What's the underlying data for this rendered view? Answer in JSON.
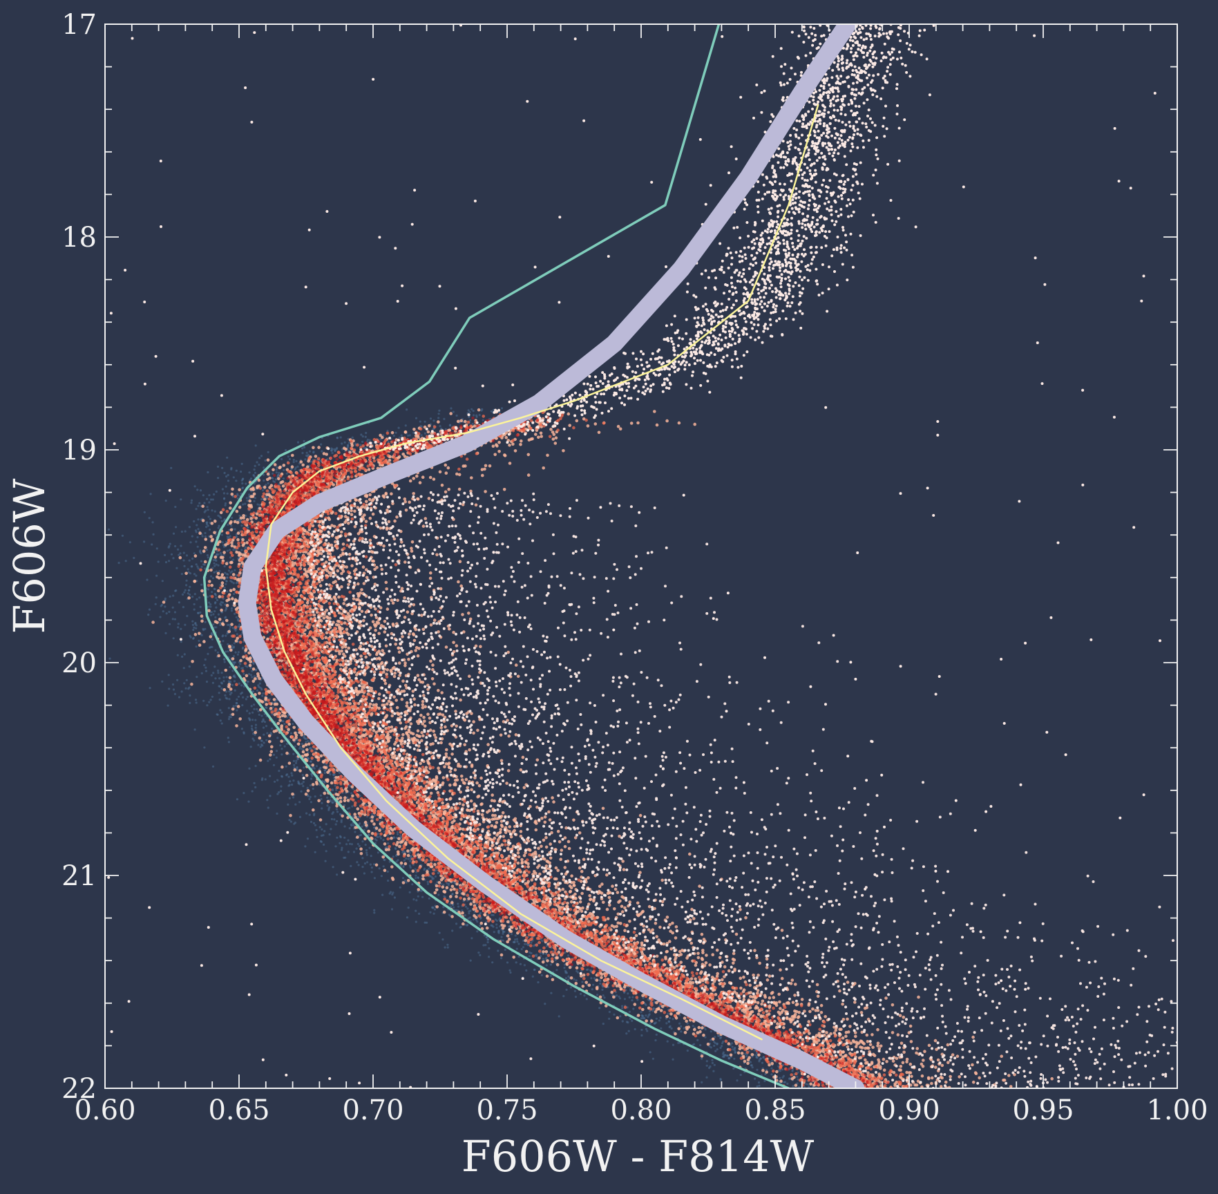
{
  "chart_data": {
    "type": "scatter",
    "title": "",
    "xlabel": "F606W - F814W",
    "ylabel": "F606W",
    "xlim": [
      0.6,
      1.0
    ],
    "ylim": [
      22,
      17
    ],
    "y_inverted": true,
    "grid": false,
    "legend": "none",
    "x_ticks": [
      "0.60",
      "0.65",
      "0.70",
      "0.75",
      "0.80",
      "0.85",
      "0.90",
      "0.95",
      "1.00"
    ],
    "y_ticks": [
      "17",
      "18",
      "19",
      "20",
      "21",
      "22"
    ],
    "colors": {
      "background": "#2d364b",
      "axis": "#f2f2f2",
      "field_stars": "#fbe9e4",
      "dense_core": "#c9181c",
      "mid_density": "#f06b4f",
      "outer_density": "#f9b59b",
      "blue_scatter": "#4d6e92",
      "teal_line": "#7fcdbb",
      "yellow_line": "#fcf49a",
      "lavender_band": "#bcbad8"
    },
    "point_cloud": {
      "description": "color-magnitude diagram of a stellar population: dense main sequence turnoff near F606W-F814W 0.66 at F606W 19.6, subgiant branch up to 0.88 at 17",
      "approx_points": 24000
    },
    "lines": [
      {
        "key": "teal",
        "points": [
          [
            0.829,
            17.0
          ],
          [
            0.809,
            17.85
          ],
          [
            0.736,
            18.38
          ],
          [
            0.721,
            18.68
          ],
          [
            0.703,
            18.85
          ],
          [
            0.68,
            18.94
          ],
          [
            0.665,
            19.03
          ],
          [
            0.653,
            19.18
          ],
          [
            0.643,
            19.38
          ],
          [
            0.637,
            19.6
          ],
          [
            0.638,
            19.78
          ],
          [
            0.644,
            19.95
          ],
          [
            0.655,
            20.15
          ],
          [
            0.667,
            20.35
          ],
          [
            0.683,
            20.6
          ],
          [
            0.7,
            20.85
          ],
          [
            0.72,
            21.08
          ],
          [
            0.745,
            21.3
          ],
          [
            0.775,
            21.52
          ],
          [
            0.805,
            21.72
          ],
          [
            0.83,
            21.87
          ],
          [
            0.855,
            22.0
          ]
        ]
      },
      {
        "key": "yellow",
        "points": [
          [
            0.866,
            17.38
          ],
          [
            0.855,
            17.85
          ],
          [
            0.84,
            18.3
          ],
          [
            0.81,
            18.6
          ],
          [
            0.775,
            18.77
          ],
          [
            0.755,
            18.85
          ],
          [
            0.735,
            18.92
          ],
          [
            0.712,
            18.97
          ],
          [
            0.695,
            19.03
          ],
          [
            0.68,
            19.1
          ],
          [
            0.67,
            19.2
          ],
          [
            0.662,
            19.35
          ],
          [
            0.66,
            19.55
          ],
          [
            0.662,
            19.75
          ],
          [
            0.667,
            19.95
          ],
          [
            0.675,
            20.15
          ],
          [
            0.688,
            20.4
          ],
          [
            0.705,
            20.65
          ],
          [
            0.728,
            20.92
          ],
          [
            0.755,
            21.18
          ],
          [
            0.785,
            21.4
          ],
          [
            0.815,
            21.58
          ],
          [
            0.845,
            21.77
          ]
        ]
      },
      {
        "key": "lavender",
        "points": [
          [
            0.877,
            17.0
          ],
          [
            0.86,
            17.32
          ],
          [
            0.84,
            17.72
          ],
          [
            0.815,
            18.15
          ],
          [
            0.79,
            18.5
          ],
          [
            0.762,
            18.78
          ],
          [
            0.735,
            18.97
          ],
          [
            0.705,
            19.12
          ],
          [
            0.68,
            19.25
          ],
          [
            0.664,
            19.38
          ],
          [
            0.655,
            19.55
          ],
          [
            0.653,
            19.72
          ],
          [
            0.655,
            19.88
          ],
          [
            0.663,
            20.08
          ],
          [
            0.675,
            20.28
          ],
          [
            0.693,
            20.52
          ],
          [
            0.715,
            20.78
          ],
          [
            0.742,
            21.04
          ],
          [
            0.772,
            21.3
          ],
          [
            0.8,
            21.5
          ],
          [
            0.83,
            21.7
          ],
          [
            0.86,
            21.87
          ],
          [
            0.88,
            22.0
          ]
        ]
      }
    ]
  }
}
